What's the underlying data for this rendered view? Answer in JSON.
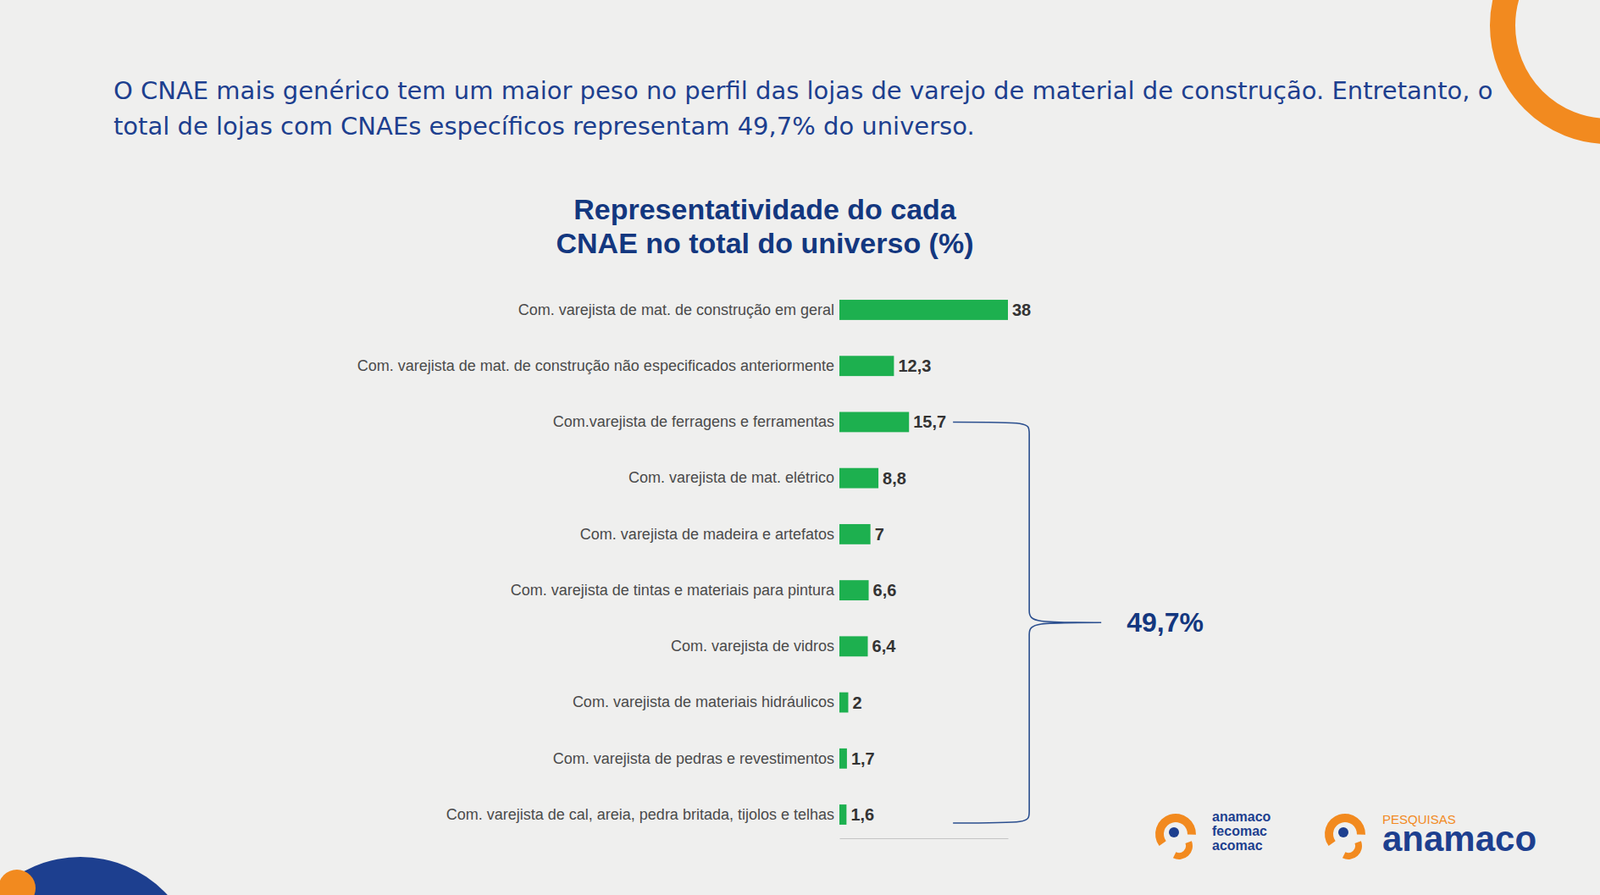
{
  "header": {
    "text": "O CNAE mais genérico tem um maior peso no perfil das lojas de varejo de material de construção. Entretanto, o total de lojas com CNAEs específicos representam 49,7% do universo."
  },
  "chart_data": {
    "type": "bar",
    "orientation": "horizontal",
    "title": "Representatividade do cada CNAE no total do universo (%)",
    "categories": [
      "Com. varejista de mat. de construção em geral",
      "Com. varejista de mat. de construção não especificados anteriormente",
      "Com.varejista de ferragens e ferramentas",
      "Com. varejista de mat. elétrico",
      "Com. varejista de madeira e artefatos",
      "Com. varejista de tintas e materiais para pintura",
      "Com. varejista de vidros",
      "Com. varejista de materiais hidráulicos",
      "Com. varejista de pedras e revestimentos",
      "Com. varejista de cal, areia, pedra britada, tijolos e telhas"
    ],
    "values": [
      38,
      12.3,
      15.7,
      8.8,
      7,
      6.6,
      6.4,
      2,
      1.7,
      1.6
    ],
    "value_labels": [
      "38",
      "12,3",
      "15,7",
      "8,8",
      "7",
      "6,6",
      "6,4",
      "2",
      "1,7",
      "1,6"
    ],
    "data_labels": true,
    "color": "#1db04f",
    "xlim": [
      0,
      38
    ],
    "xticks": [],
    "grid": false,
    "tick_labels": "y",
    "annotations": [
      {
        "text": "49,7%",
        "start": 2,
        "end": 9
      }
    ]
  },
  "logos": [
    {
      "lines": [
        "anamaco",
        "fecomac",
        "acomac"
      ]
    },
    {
      "lines": [
        "PESQUISAS",
        "anamaco"
      ]
    }
  ]
}
